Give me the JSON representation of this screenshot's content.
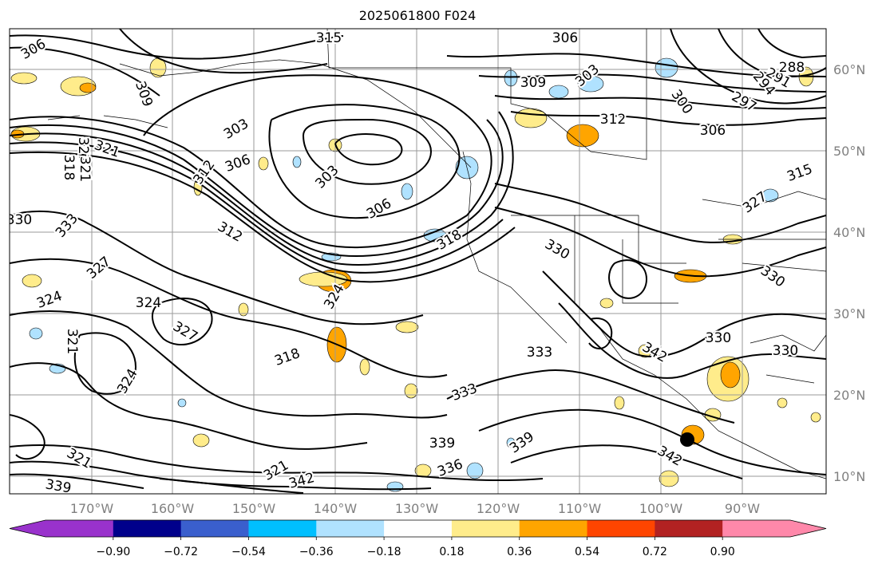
{
  "title": "2025061800 F024",
  "map": {
    "lon_ticks": [
      "170°W",
      "160°W",
      "150°W",
      "140°W",
      "130°W",
      "120°W",
      "110°W",
      "100°W",
      "90°W"
    ],
    "lat_ticks": [
      "60°N",
      "50°N",
      "40°N",
      "30°N",
      "20°N",
      "10°N"
    ],
    "grid": true,
    "marker": "black-dot"
  },
  "colorbar": {
    "ticks": [
      "−0.90",
      "−0.72",
      "−0.54",
      "−0.36",
      "−0.18",
      "0.18",
      "0.36",
      "0.54",
      "0.72",
      "0.90"
    ],
    "colors": [
      "#9932cc",
      "#00008b",
      "#3a5fcd",
      "#00bfff",
      "#b0e2ff",
      "#ffffff",
      "#ffec8b",
      "#ffa500",
      "#ff4500",
      "#b22222",
      "#ff88aa"
    ],
    "extend": "both"
  },
  "contour_labels": [
    "306",
    "315",
    "306",
    "309",
    "309",
    "303",
    "312",
    "300",
    "306",
    "297",
    "294",
    "291",
    "288",
    "303",
    "306",
    "312",
    "303",
    "306",
    "327",
    "321",
    "318",
    "321",
    "330",
    "333",
    "327",
    "312",
    "318",
    "324",
    "324",
    "324",
    "327",
    "321",
    "324",
    "318",
    "330",
    "330",
    "333",
    "342",
    "330",
    "330",
    "333",
    "339",
    "339",
    "336",
    "342",
    "321",
    "339",
    "342",
    "321",
    "315",
    "327"
  ]
}
